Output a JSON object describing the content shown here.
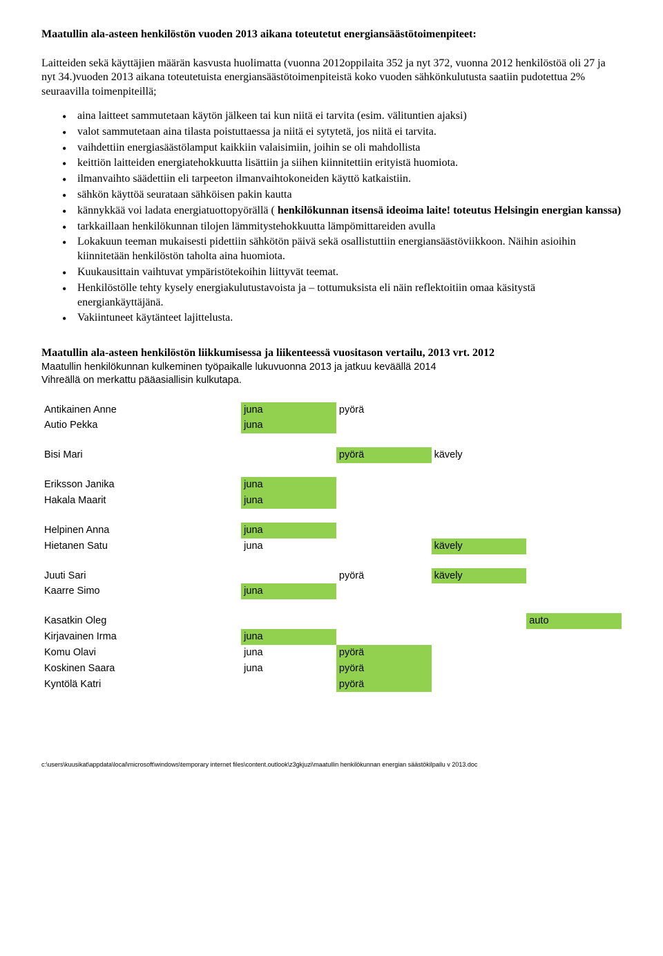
{
  "title": "Maatullin ala-asteen henkilöstön vuoden 2013 aikana toteutetut energiansäästötoimenpiteet:",
  "intro": "Laitteiden sekä käyttäjien määrän kasvusta huolimatta (vuonna 2012oppilaita 352 ja nyt 372, vuonna 2012 henkilöstöä oli 27 ja nyt 34.)vuoden 2013 aikana toteutetuista energiansäästötoimenpiteistä koko vuoden sähkönkulutusta saatiin pudotettua 2% seuraavilla toimenpiteillä;",
  "bullets": [
    {
      "text": "aina laitteet sammutetaan käytön jälkeen tai kun niitä ei tarvita (esim. välituntien ajaksi)"
    },
    {
      "text": "valot sammutetaan aina tilasta poistuttaessa ja niitä ei sytytetä, jos niitä ei tarvita."
    },
    {
      "text": "vaihdettiin energiasäästölamput kaikkiin valaisimiin, joihin se oli mahdollista"
    },
    {
      "text": "keittiön laitteiden energiatehokkuutta lisättiin ja siihen kiinnitettiin erityistä huomiota."
    },
    {
      "text": "ilmanvaihto säädettiin eli tarpeeton ilmanvaihtokoneiden käyttö katkaistiin."
    },
    {
      "text": "sähkön käyttöä seurataan sähköisen pakin kautta"
    },
    {
      "prefix": "kännykkää voi ladata energiatuottopyörällä ( ",
      "bold": "henkilökunnan itsensä ideoima laite! toteutus Helsingin energian kanssa)"
    },
    {
      "text": "tarkkaillaan henkilökunnan tilojen lämmitystehokkuutta lämpömittareiden avulla"
    },
    {
      "text": "Lokakuun teeman mukaisesti pidettiin sähkötön päivä sekä osallistuttiin energiansäästöviikkoon. Näihin asioihin kiinnitetään henkilöstön taholta aina huomiota."
    },
    {
      "text": "Kuukausittain vaihtuvat ympäristötekoihin liittyvät teemat."
    },
    {
      "text": "Henkilöstölle tehty kysely energiakulutustavoista ja – tottumuksista eli näin reflektoitiin omaa kä­sitystä energiankäyttäjänä."
    },
    {
      "text": "Vakiintuneet käytänteet lajittelusta."
    }
  ],
  "commute_heading": "Maatullin ala-asteen henkilöstön liikkumisessa ja liikenteessä vuositason vertailu, 2013 vrt. 2012",
  "commute_sub": "Maatullin henkilökunnan kulkeminen työpaikalle lukuvuonna 2013 ja jatkuu keväällä 2014",
  "commute_note": "Vihreällä on merkattu pääasiallisin kulkutapa.",
  "colors": {
    "highlight": "#92d050",
    "text": "#000000",
    "bg": "#ffffff"
  },
  "blocks": [
    {
      "rows": [
        {
          "name": "Antikainen Anne",
          "m1": {
            "t": "juna",
            "g": true
          },
          "m2": {
            "t": "pyörä",
            "g": false
          }
        },
        {
          "name": "Autio Pekka",
          "m1": {
            "t": "juna",
            "g": true
          }
        }
      ]
    },
    {
      "rows": [
        {
          "name": "Bisi Mari",
          "m2": {
            "t": "pyörä",
            "g": true
          },
          "m3": {
            "t": "kävely",
            "g": false
          }
        }
      ]
    },
    {
      "rows": [
        {
          "name": "Eriksson Janika",
          "m1": {
            "t": "juna",
            "g": true
          }
        },
        {
          "name": "Hakala Maarit",
          "m1": {
            "t": "juna",
            "g": true
          }
        }
      ]
    },
    {
      "rows": [
        {
          "name": "Helpinen Anna",
          "m1": {
            "t": "juna",
            "g": true
          }
        },
        {
          "name": "Hietanen Satu",
          "m1": {
            "t": "juna",
            "g": false
          },
          "m3": {
            "t": "kävely",
            "g": true
          }
        }
      ]
    },
    {
      "rows": [
        {
          "name": "Juuti Sari",
          "m2": {
            "t": "pyörä",
            "g": false
          },
          "m3": {
            "t": "kävely",
            "g": true
          }
        },
        {
          "name": "Kaarre Simo",
          "m1": {
            "t": "juna",
            "g": true
          }
        }
      ]
    },
    {
      "rows": [
        {
          "name": "Kasatkin Oleg",
          "m4": {
            "t": "auto",
            "g": true
          }
        },
        {
          "name": "Kirjavainen Irma",
          "m1": {
            "t": "juna",
            "g": true
          }
        },
        {
          "name": "Komu Olavi",
          "m1": {
            "t": "juna",
            "g": false
          },
          "m2": {
            "t": "pyörä",
            "g": true
          }
        },
        {
          "name": "Koskinen Saara",
          "m1": {
            "t": "juna",
            "g": false
          },
          "m2": {
            "t": "pyörä",
            "g": true
          }
        },
        {
          "name": "Kyntölä Katri",
          "m2": {
            "t": "pyörä",
            "g": true
          }
        }
      ]
    }
  ],
  "footer": "c:\\users\\kuusikat\\appdata\\local\\microsoft\\windows\\temporary internet files\\content.outlook\\z3gkjuzi\\maatullin henkilökunnan energian säästökilpailu v 2013.doc"
}
